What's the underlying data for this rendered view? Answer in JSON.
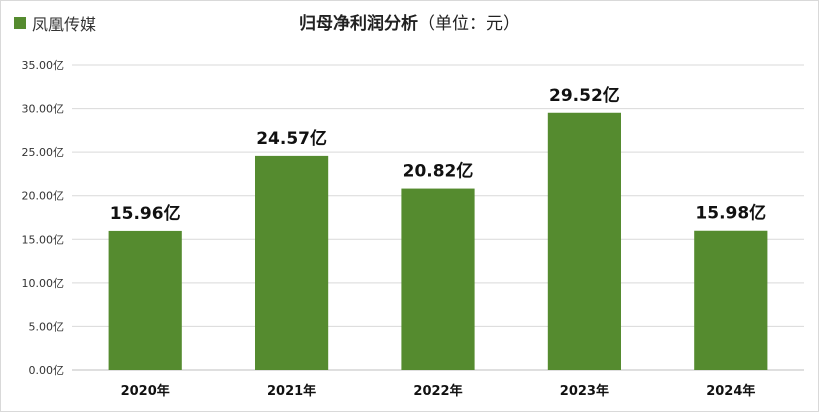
{
  "chart_data": {
    "type": "bar",
    "title": "归母净利润分析",
    "subtitle": "（单位：元）",
    "legend": {
      "label": "凤凰传媒",
      "color": "#558b2f",
      "position": "top-left"
    },
    "categories": [
      "2020年",
      "2021年",
      "2022年",
      "2023年",
      "2024年"
    ],
    "series": [
      {
        "name": "凤凰传媒",
        "values": [
          15.96,
          24.57,
          20.82,
          29.52,
          15.98
        ]
      }
    ],
    "data_labels": [
      "15.96亿",
      "24.57亿",
      "20.82亿",
      "29.52亿",
      "15.98亿"
    ],
    "y_ticks": [
      "0.00亿",
      "5.00亿",
      "10.00亿",
      "15.00亿",
      "20.00亿",
      "25.00亿",
      "30.00亿",
      "35.00亿"
    ],
    "ylim": [
      0,
      35
    ],
    "grid": true,
    "bar_color": "#558b2f"
  }
}
